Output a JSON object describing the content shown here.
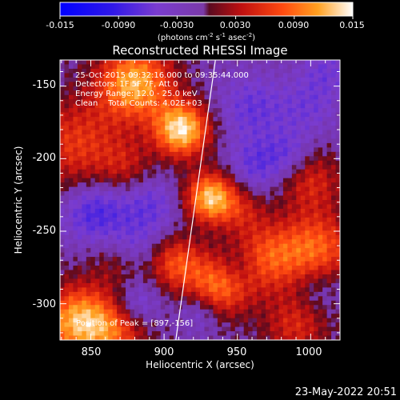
{
  "colorbar": {
    "tick_labels": [
      "-0.015",
      "-0.0090",
      "-0.0030",
      "0.0030",
      "0.0090",
      "0.015"
    ],
    "min": -0.015,
    "max": 0.015,
    "units_main": "(photons cm",
    "units_exp1": "-2",
    "units_mid": " s",
    "units_exp2": "-1",
    "units_end": " asec",
    "units_exp3": "-2",
    "units_close": ")"
  },
  "image": {
    "title": "Reconstructed RHESSI Image",
    "xlabel": "Heliocentric X (arcsec)",
    "ylabel": "Heliocentric Y (arcsec)",
    "x_ticks": [
      "850",
      "900",
      "950",
      "1000"
    ],
    "y_ticks": [
      "-150",
      "-200",
      "-250",
      "-300"
    ],
    "annotation": {
      "time_range": "25-Oct-2015 09:32:16.000 to 09:35:44.000",
      "detectors": "Detectors: 1F 5F 7F, Att 0",
      "energy": "Energy Range: 12.0 - 25.0 keV",
      "method": "Clean    Total Counts: 4.02E+03",
      "peak": "Position of Peak = [897,-156]"
    }
  },
  "footer": {
    "date": "23-May-2022 20:51"
  },
  "chart_data": {
    "type": "heatmap",
    "title": "Reconstructed RHESSI Image",
    "xlabel": "Heliocentric X (arcsec)",
    "ylabel": "Heliocentric Y (arcsec)",
    "xlim": [
      829,
      1020
    ],
    "ylim": [
      -325,
      -132
    ],
    "value_range": [
      -0.015,
      0.015
    ],
    "peak_position": [
      897,
      -156
    ],
    "limb_line": [
      [
        935,
        -132
      ],
      [
        908,
        -325
      ]
    ],
    "sources": [
      {
        "x": 880,
        "y": -148,
        "r": 18,
        "v": 0.013
      },
      {
        "x": 912,
        "y": -180,
        "r": 13,
        "v": 0.015
      },
      {
        "x": 932,
        "y": -227,
        "r": 12,
        "v": 0.014
      },
      {
        "x": 840,
        "y": -190,
        "r": 22,
        "v": 0.007
      },
      {
        "x": 840,
        "y": -312,
        "r": 17,
        "v": 0.012
      },
      {
        "x": 866,
        "y": -318,
        "r": 16,
        "v": 0.008
      },
      {
        "x": 908,
        "y": -272,
        "r": 13,
        "v": 0.008
      },
      {
        "x": 937,
        "y": -288,
        "r": 15,
        "v": 0.01
      },
      {
        "x": 970,
        "y": -268,
        "r": 17,
        "v": 0.008
      },
      {
        "x": 1005,
        "y": -262,
        "r": 18,
        "v": 0.009
      },
      {
        "x": 1000,
        "y": -215,
        "r": 15,
        "v": 0.006
      },
      {
        "x": 990,
        "y": -315,
        "r": 16,
        "v": 0.006
      },
      {
        "x": 874,
        "y": -205,
        "r": 13,
        "v": 0.004
      },
      {
        "x": 954,
        "y": -236,
        "r": 11,
        "v": 0.004
      },
      {
        "x": 870,
        "y": -272,
        "r": 14,
        "v": 0.004
      },
      {
        "x": 960,
        "y": -165,
        "r": 16,
        "v": -0.004
      },
      {
        "x": 998,
        "y": -165,
        "r": 14,
        "v": -0.003
      },
      {
        "x": 853,
        "y": -237,
        "r": 15,
        "v": -0.006
      },
      {
        "x": 890,
        "y": -232,
        "r": 14,
        "v": -0.004
      },
      {
        "x": 880,
        "y": -262,
        "r": 13,
        "v": -0.004
      },
      {
        "x": 962,
        "y": -205,
        "r": 13,
        "v": -0.004
      },
      {
        "x": 985,
        "y": -198,
        "r": 12,
        "v": -0.004
      },
      {
        "x": 880,
        "y": -300,
        "r": 12,
        "v": -0.005
      },
      {
        "x": 925,
        "y": -305,
        "r": 10,
        "v": -0.004
      },
      {
        "x": 1005,
        "y": -290,
        "r": 12,
        "v": -0.003
      },
      {
        "x": 950,
        "y": -275,
        "r": 10,
        "v": -0.004
      },
      {
        "x": 1010,
        "y": -140,
        "r": 12,
        "v": -0.003
      }
    ]
  }
}
